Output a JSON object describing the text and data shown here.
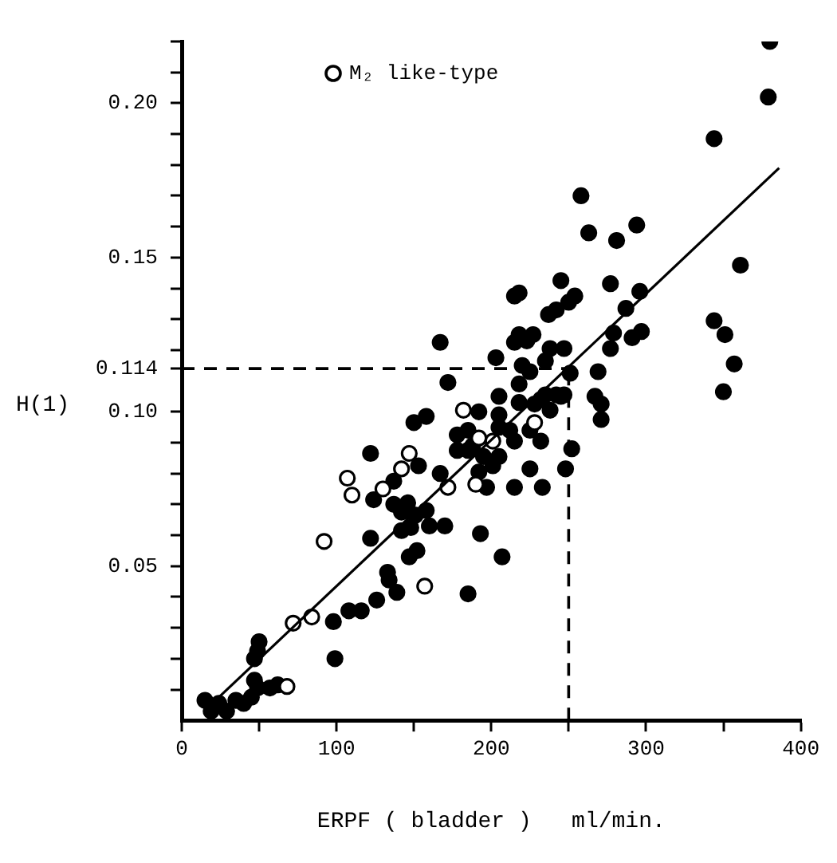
{
  "chart_data": {
    "type": "scatter",
    "xlabel": "ERPF ( bladder )   ml/min.",
    "ylabel": "H(1)",
    "xlim": [
      0,
      400
    ],
    "ylim": [
      0,
      0.22
    ],
    "xticks": [
      0,
      {
        "value": 50,
        "label": null
      },
      100,
      {
        "value": 150,
        "label": null
      },
      200,
      {
        "value": 250,
        "label": null
      },
      300,
      {
        "value": 350,
        "label": null
      },
      400
    ],
    "yticks": [
      {
        "value": 0.01,
        "label": null
      },
      {
        "value": 0.02,
        "label": null
      },
      {
        "value": 0.03,
        "label": null
      },
      {
        "value": 0.04,
        "label": null
      },
      {
        "value": 0.05,
        "label": "0.05"
      },
      {
        "value": 0.06,
        "label": null
      },
      {
        "value": 0.07,
        "label": null
      },
      {
        "value": 0.08,
        "label": null
      },
      {
        "value": 0.09,
        "label": null
      },
      {
        "value": 0.1,
        "label": "0.10"
      },
      {
        "value": 0.114,
        "label": "0.114"
      },
      {
        "value": 0.12,
        "label": null
      },
      {
        "value": 0.13,
        "label": null
      },
      {
        "value": 0.14,
        "label": null
      },
      {
        "value": 0.15,
        "label": "0.15"
      },
      {
        "value": 0.16,
        "label": null
      },
      {
        "value": 0.17,
        "label": null
      },
      {
        "value": 0.18,
        "label": null
      },
      {
        "value": 0.19,
        "label": null
      },
      {
        "value": 0.2,
        "label": "0.20"
      },
      {
        "value": 0.21,
        "label": null
      },
      {
        "value": 0.22,
        "label": null
      }
    ],
    "grid": false,
    "legend": "top left",
    "marker": "circle",
    "ref_lines": [
      {
        "axis": "y",
        "value": 0.114,
        "line_style": "dashed",
        "color": "#000000"
      },
      {
        "axis": "x",
        "value": 250,
        "line_style": "dashed",
        "color": "#000000"
      }
    ],
    "series": [
      {
        "color": "#000000",
        "x": [
          380,
          379,
          344,
          258,
          263,
          281,
          294,
          361,
          218,
          245,
          277,
          296,
          254,
          250,
          242,
          237,
          287,
          344,
          351,
          357,
          350,
          297,
          291,
          279,
          277,
          218,
          227,
          215,
          238,
          247,
          235,
          220,
          251,
          269,
          267,
          271,
          271,
          235,
          242,
          247,
          228,
          238,
          252,
          248,
          225,
          167,
          172,
          203,
          223,
          215,
          225,
          218,
          205,
          218,
          232,
          245,
          150,
          158,
          122,
          153,
          167,
          124,
          137,
          146,
          158,
          192,
          178,
          185,
          188,
          195,
          205,
          201,
          178,
          185,
          205,
          212,
          215,
          205,
          225,
          232,
          215,
          233,
          197,
          192,
          122,
          137,
          142,
          151,
          160,
          170,
          142,
          148,
          193,
          207,
          185,
          133,
          134,
          139,
          147,
          152,
          126,
          108,
          116,
          98,
          99,
          50,
          49,
          47,
          47,
          49,
          45,
          40,
          35,
          57,
          62,
          15,
          24,
          29,
          19
        ],
        "values": [
          0.22,
          0.202,
          0.1885,
          0.17,
          0.158,
          0.1555,
          0.1605,
          0.1475,
          0.1385,
          0.1425,
          0.1415,
          0.139,
          0.1375,
          0.1355,
          0.133,
          0.1315,
          0.1335,
          0.1295,
          0.125,
          0.1155,
          0.1065,
          0.126,
          0.124,
          0.1255,
          0.1205,
          0.125,
          0.125,
          0.1225,
          0.1205,
          0.1205,
          0.1165,
          0.115,
          0.1125,
          0.113,
          0.105,
          0.1025,
          0.0975,
          0.1055,
          0.1055,
          0.1055,
          0.1025,
          0.1005,
          0.088,
          0.0815,
          0.0815,
          0.1225,
          0.1095,
          0.1175,
          0.123,
          0.1375,
          0.113,
          0.109,
          0.105,
          0.103,
          0.104,
          0.105,
          0.0965,
          0.0985,
          0.0865,
          0.0825,
          0.08,
          0.0715,
          0.0775,
          0.0705,
          0.068,
          0.1,
          0.0925,
          0.094,
          0.089,
          0.0855,
          0.0855,
          0.0825,
          0.0875,
          0.0875,
          0.095,
          0.094,
          0.0905,
          0.099,
          0.094,
          0.0905,
          0.0755,
          0.0755,
          0.0755,
          0.0805,
          0.059,
          0.07,
          0.0675,
          0.0665,
          0.063,
          0.063,
          0.0615,
          0.0625,
          0.0605,
          0.053,
          0.041,
          0.048,
          0.0455,
          0.0415,
          0.053,
          0.055,
          0.039,
          0.0355,
          0.0355,
          0.032,
          0.02,
          0.0255,
          0.0225,
          0.02,
          0.013,
          0.0105,
          0.0075,
          0.0055,
          0.0065,
          0.0105,
          0.0115,
          0.0065,
          0.0055,
          0.003,
          0.003
        ]
      },
      {
        "name": "M₂ like-type",
        "color": "#ffffff",
        "x": [
          228,
          182,
          192,
          201,
          107,
          110,
          130,
          142,
          147,
          172,
          190,
          92,
          72,
          84,
          157,
          68
        ],
        "values": [
          0.0965,
          0.1005,
          0.0915,
          0.0905,
          0.0785,
          0.073,
          0.075,
          0.0815,
          0.0865,
          0.0755,
          0.0765,
          0.058,
          0.0315,
          0.0335,
          0.0435,
          0.011
        ]
      },
      {
        "type": "line",
        "marker": "none",
        "color": "#000000",
        "x": [
          24,
          386
        ],
        "values": [
          0.0075,
          0.179
        ]
      }
    ]
  }
}
